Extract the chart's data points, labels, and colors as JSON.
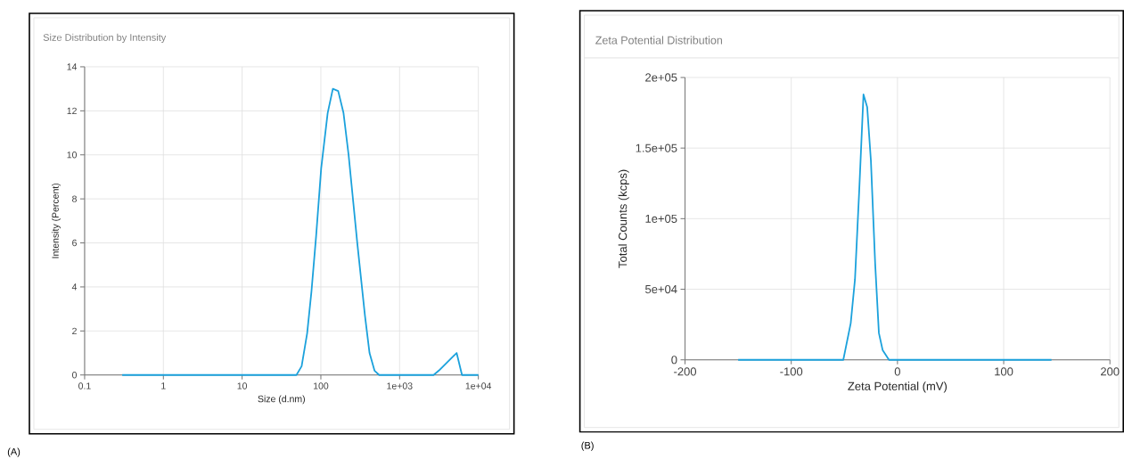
{
  "chart_data": [
    {
      "type": "line",
      "title": "Size Distribution by Intensity",
      "xlabel": "Size (d.nm)",
      "ylabel": "Intensity (Percent)",
      "log": "x",
      "grid": true,
      "annotations": [
        "(A)"
      ],
      "xlim": [
        0.1,
        10000
      ],
      "ylim": [
        0,
        14
      ],
      "xticks": [
        0.1,
        1,
        10,
        100,
        {
          "value": 1000,
          "label": "1e+03"
        },
        {
          "value": 10000,
          "label": "1e+04"
        }
      ],
      "yticks": [
        0,
        2,
        4,
        6,
        8,
        10,
        12,
        14
      ],
      "series": [
        {
          "color": "#1ba1dc",
          "x": [
            0.3,
            49,
            57,
            67,
            76,
            87,
            101,
            122,
            142,
            166,
            194,
            225,
            290,
            363,
            415,
            480,
            550,
            2700,
            3150,
            5300,
            6200,
            10000
          ],
          "values": [
            0,
            0,
            0.4,
            1.9,
            3.8,
            6.3,
            9.4,
            11.9,
            13,
            12.9,
            11.9,
            10,
            6,
            2.7,
            1,
            0.2,
            0,
            0,
            0.2,
            1,
            0,
            0
          ]
        }
      ]
    },
    {
      "type": "line",
      "title": "Zeta Potential Distribution",
      "xlabel": "Zeta Potential (mV)",
      "ylabel": "Total Counts (kcps)",
      "grid": true,
      "annotations": [
        "(B)"
      ],
      "xlim": [
        -200,
        200
      ],
      "ylim": [
        0,
        200000
      ],
      "xticks": [
        -200,
        -100,
        0,
        100,
        200
      ],
      "yticks": [
        0,
        {
          "value": 50000,
          "label": "5e+04"
        },
        {
          "value": 100000,
          "label": "1e+05"
        },
        {
          "value": 150000,
          "label": "1.5e+05"
        },
        {
          "value": 200000,
          "label": "2e+05"
        }
      ],
      "series": [
        {
          "color": "#1ba1dc",
          "x": [
            -150,
            -51,
            -44,
            -40,
            -36,
            -32,
            -28.5,
            -25,
            -21,
            -17.5,
            -14,
            -8,
            145
          ],
          "values": [
            0,
            0,
            26000,
            57000,
            120000,
            188000,
            179000,
            141000,
            68000,
            19000,
            7000,
            0,
            0
          ]
        }
      ]
    }
  ]
}
